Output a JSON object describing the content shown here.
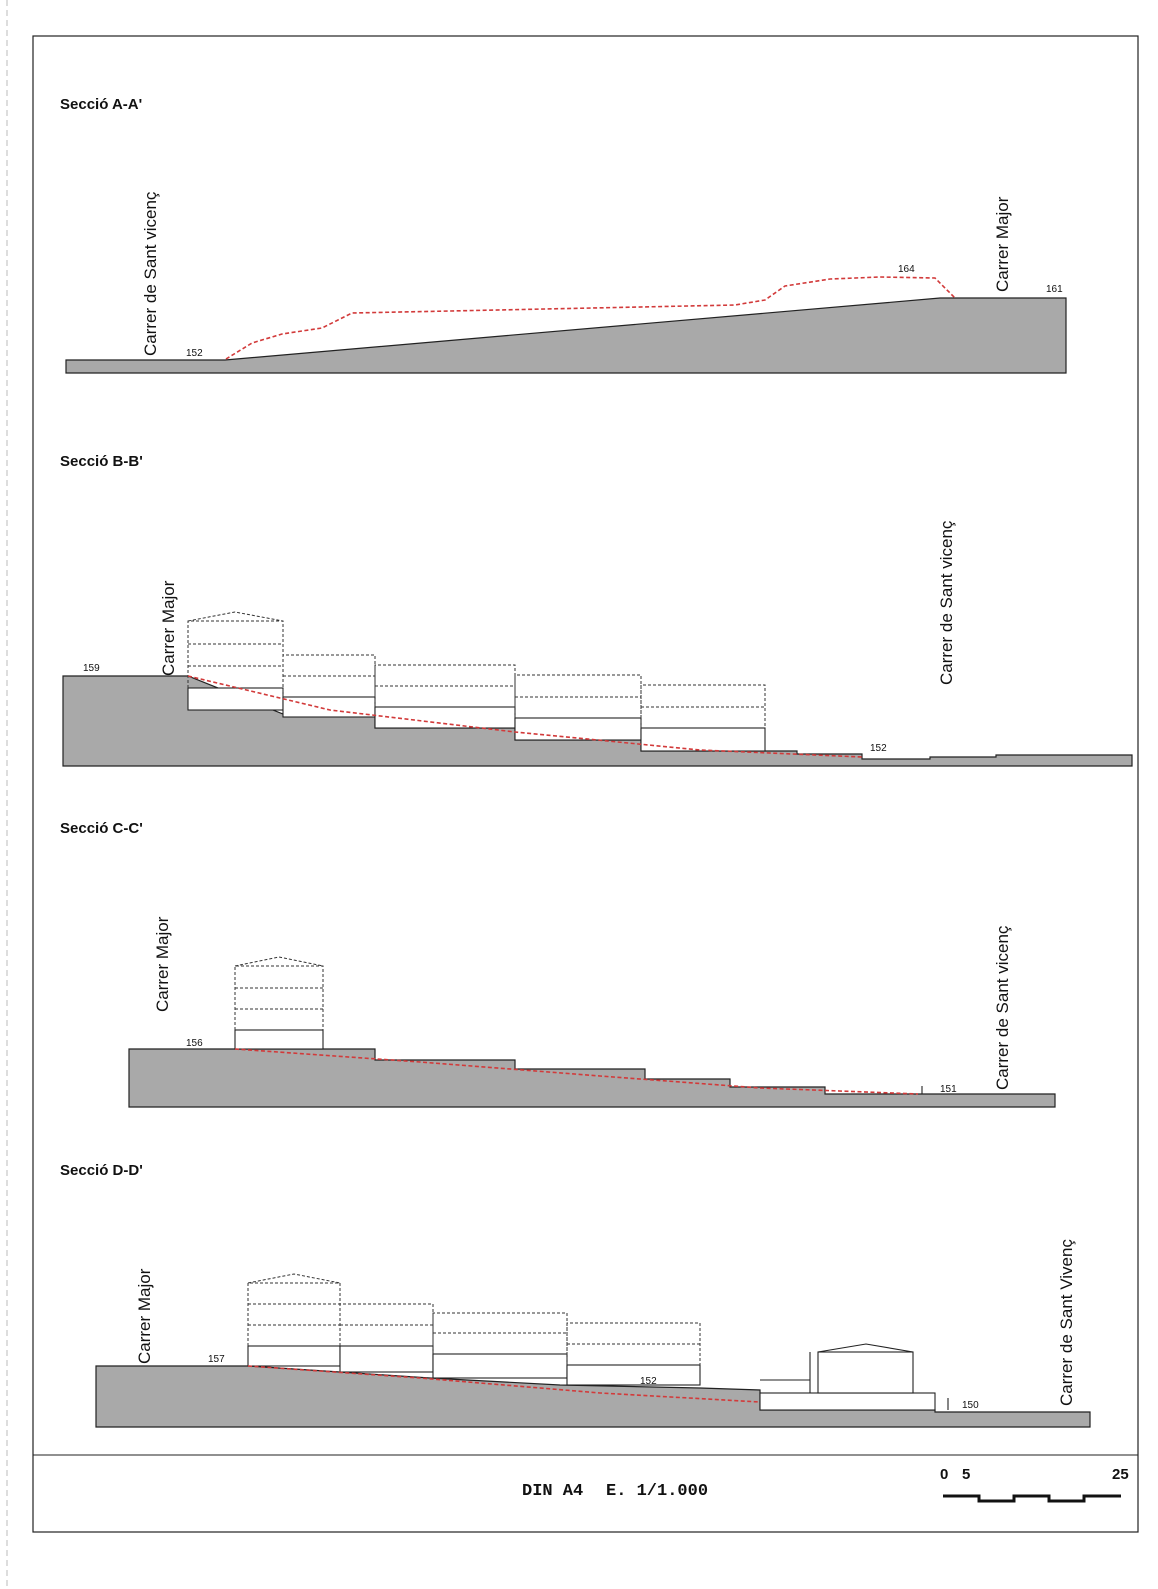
{
  "sections": {
    "a": {
      "title": "Secció A-A'",
      "street_left": "Carrer de Sant vicenç",
      "street_right": "Carrer Major",
      "elev_1": "152",
      "elev_2": "164",
      "elev_3": "161"
    },
    "b": {
      "title": "Secció B-B'",
      "street_left": "Carrer Major",
      "street_right": "Carrer de Sant vicenç",
      "elev_1": "159",
      "elev_2": "152"
    },
    "c": {
      "title": "Secció C-C'",
      "street_left": "Carrer Major",
      "street_right": "Carrer de Sant vicenç",
      "elev_1": "156",
      "elev_2": "151"
    },
    "d": {
      "title": "Secció D-D'",
      "street_left": "Carrer Major",
      "street_right": "Carrer de Sant Vivenç",
      "elev_1": "157",
      "elev_2": "152",
      "elev_3": "150"
    }
  },
  "footer": {
    "format": "DIN A4",
    "scale": "E. 1/1.000",
    "bar_start": "0",
    "bar_mid": "5",
    "bar_end": "25"
  }
}
